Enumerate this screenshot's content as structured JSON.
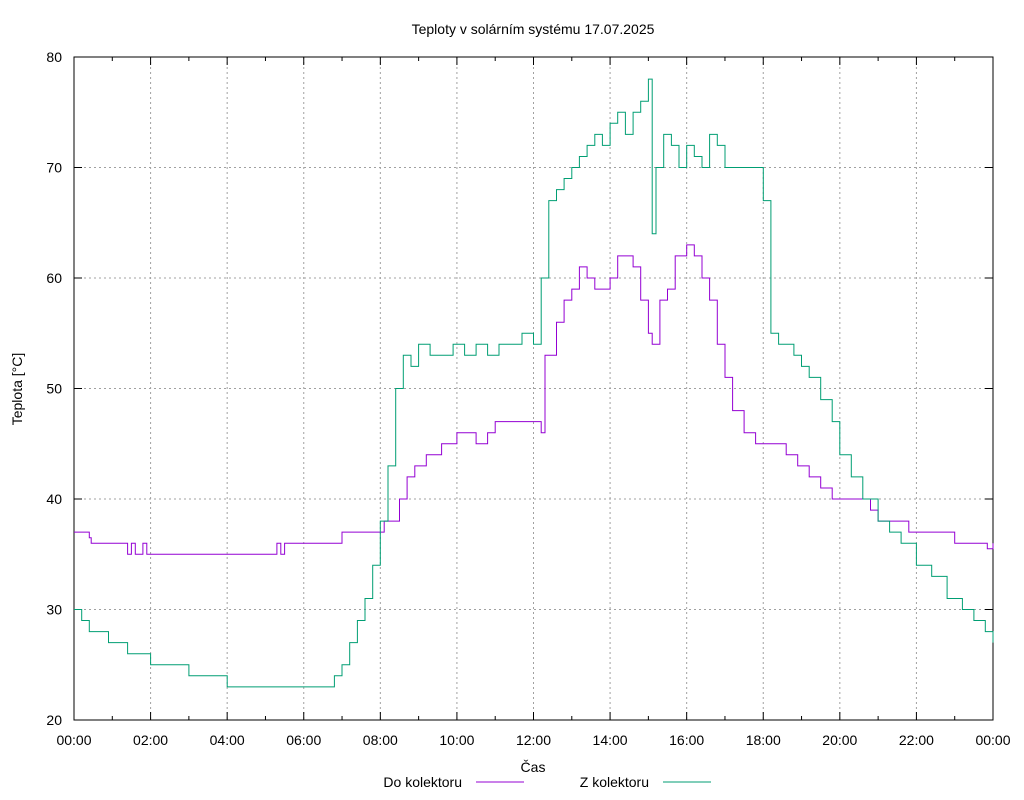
{
  "chart_data": {
    "type": "line",
    "title": "Teploty v solárním systému 17.07.2025",
    "xlabel": "Čas",
    "ylabel": "Teplota [°C]",
    "xlim": [
      0,
      24
    ],
    "ylim": [
      20,
      80
    ],
    "grid": true,
    "legend_position": "bottom-center",
    "x_tick_labels": [
      "00:00",
      "02:00",
      "04:00",
      "06:00",
      "08:00",
      "10:00",
      "12:00",
      "14:00",
      "16:00",
      "18:00",
      "20:00",
      "22:00",
      "00:00"
    ],
    "y_tick_labels": [
      "20",
      "30",
      "40",
      "50",
      "60",
      "70",
      "80"
    ],
    "series": [
      {
        "name": "Do kolektoru",
        "color": "#9400d3",
        "x": [
          0.0,
          0.35,
          0.4,
          0.45,
          0.5,
          1.3,
          1.4,
          1.5,
          1.6,
          1.8,
          1.9,
          2.0,
          5.2,
          5.3,
          5.4,
          5.5,
          6.2,
          7.0,
          7.2,
          7.3,
          8.1,
          8.45,
          8.5,
          8.7,
          8.9,
          9.2,
          9.6,
          10.0,
          10.3,
          10.5,
          10.8,
          11.0,
          12.0,
          12.2,
          12.3,
          12.4,
          12.6,
          12.8,
          13.0,
          13.2,
          13.4,
          13.6,
          13.8,
          14.0,
          14.2,
          14.5,
          14.6,
          14.8,
          15.0,
          15.1,
          15.3,
          15.5,
          15.7,
          15.9,
          16.0,
          16.2,
          16.4,
          16.6,
          16.8,
          17.0,
          17.2,
          17.5,
          17.8,
          18.0,
          18.3,
          18.6,
          18.9,
          19.2,
          19.5,
          19.8,
          20.0,
          20.5,
          20.8,
          21.0,
          21.5,
          21.8,
          22.5,
          23.0,
          23.7,
          23.85,
          24.0
        ],
        "y": [
          37,
          37,
          36.5,
          36,
          36,
          36,
          35,
          36,
          35,
          36,
          35,
          35,
          35,
          36,
          35,
          36,
          36,
          37,
          37,
          37,
          38,
          38,
          40,
          42,
          43,
          44,
          45,
          46,
          46,
          45,
          46,
          47,
          47,
          46,
          53,
          53,
          56,
          58,
          59,
          61,
          60,
          59,
          59,
          60,
          62,
          62,
          61,
          58,
          55,
          54,
          58,
          59,
          62,
          62,
          63,
          62,
          60,
          58,
          54,
          51,
          48,
          46,
          45,
          45,
          45,
          44,
          43,
          42,
          41,
          40,
          40,
          40,
          39,
          38,
          38,
          37,
          37,
          36,
          36,
          35.5,
          36
        ]
      },
      {
        "name": "Z kolektoru",
        "color": "#009e73",
        "x": [
          0.0,
          0.2,
          0.4,
          0.6,
          0.9,
          1.2,
          1.4,
          1.6,
          2.0,
          2.6,
          3.0,
          3.5,
          4.0,
          5.0,
          6.0,
          6.6,
          6.8,
          7.0,
          7.2,
          7.4,
          7.6,
          7.8,
          8.0,
          8.2,
          8.4,
          8.6,
          8.8,
          9.0,
          9.3,
          9.6,
          9.9,
          10.2,
          10.5,
          10.8,
          11.1,
          11.4,
          11.7,
          12.0,
          12.2,
          12.4,
          12.6,
          12.8,
          13.0,
          13.2,
          13.4,
          13.6,
          13.8,
          14.0,
          14.2,
          14.4,
          14.6,
          14.8,
          15.0,
          15.1,
          15.2,
          15.4,
          15.6,
          15.8,
          16.0,
          16.2,
          16.4,
          16.6,
          16.8,
          17.0,
          17.3,
          17.6,
          17.8,
          18.0,
          18.2,
          18.4,
          18.6,
          18.8,
          19.0,
          19.2,
          19.5,
          19.8,
          20.0,
          20.3,
          20.6,
          21.0,
          21.3,
          21.6,
          22.0,
          22.4,
          22.8,
          23.2,
          23.5,
          23.8,
          24.0
        ],
        "y": [
          30,
          29,
          28,
          28,
          27,
          27,
          26,
          26,
          25,
          25,
          24,
          24,
          23,
          23,
          23,
          23,
          24,
          25,
          27,
          29,
          31,
          34,
          38,
          43,
          50,
          53,
          52,
          54,
          53,
          53,
          54,
          53,
          54,
          53,
          54,
          54,
          55,
          54,
          60,
          67,
          68,
          69,
          70,
          71,
          72,
          73,
          72,
          74,
          75,
          73,
          75,
          76,
          78,
          64,
          70,
          73,
          72,
          70,
          72,
          71,
          70,
          73,
          72,
          70,
          70,
          70,
          70,
          67,
          55,
          54,
          54,
          53,
          52,
          51,
          49,
          47,
          44,
          42,
          40,
          38,
          37,
          36,
          34,
          33,
          31,
          30,
          29,
          28,
          27
        ]
      }
    ]
  }
}
